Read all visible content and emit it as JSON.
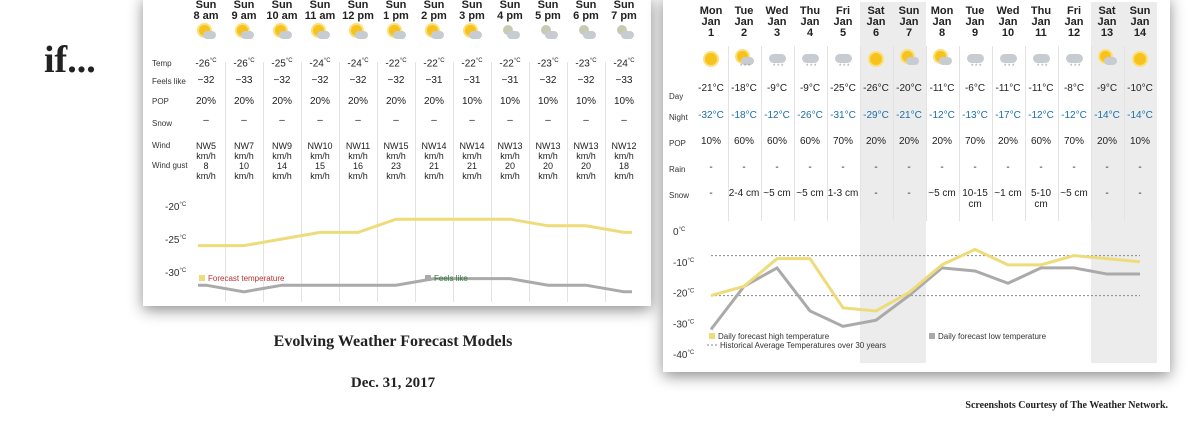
{
  "page": {
    "heading": "if...",
    "caption_title": "Evolving Weather Forecast Models",
    "caption_date": "Dec. 31, 2017",
    "credit": "Screenshots Courtesy of The Weather Network."
  },
  "hourly": {
    "row_labels": [
      "Temp",
      "Feels like",
      "POP",
      "Snow",
      "Wind",
      "Wind gust"
    ],
    "columns": [
      {
        "day": "Sun",
        "time": "8 am",
        "icon": "sun-cloud-icon",
        "temp": "-26",
        "feels": "−32",
        "pop": "20%",
        "snow": "–",
        "wind": "NW5",
        "wind_unit": "km/h",
        "gust": "8",
        "gust_unit": "km/h"
      },
      {
        "day": "Sun",
        "time": "9 am",
        "icon": "sun-cloud-icon",
        "temp": "-26",
        "feels": "−33",
        "pop": "20%",
        "snow": "–",
        "wind": "NW7",
        "wind_unit": "km/h",
        "gust": "10",
        "gust_unit": "km/h"
      },
      {
        "day": "Sun",
        "time": "10 am",
        "icon": "sun-cloud-icon",
        "temp": "-25",
        "feels": "−32",
        "pop": "20%",
        "snow": "–",
        "wind": "NW9",
        "wind_unit": "km/h",
        "gust": "14",
        "gust_unit": "km/h"
      },
      {
        "day": "Sun",
        "time": "11 am",
        "icon": "sun-cloud-icon",
        "temp": "-24",
        "feels": "−32",
        "pop": "20%",
        "snow": "–",
        "wind": "NW10",
        "wind_unit": "km/h",
        "gust": "15",
        "gust_unit": "km/h"
      },
      {
        "day": "Sun",
        "time": "12 pm",
        "icon": "sun-cloud-icon",
        "temp": "-24",
        "feels": "−32",
        "pop": "20%",
        "snow": "–",
        "wind": "NW11",
        "wind_unit": "km/h",
        "gust": "16",
        "gust_unit": "km/h"
      },
      {
        "day": "Sun",
        "time": "1 pm",
        "icon": "sun-cloud-icon",
        "temp": "-22",
        "feels": "−32",
        "pop": "20%",
        "snow": "–",
        "wind": "NW15",
        "wind_unit": "km/h",
        "gust": "23",
        "gust_unit": "km/h"
      },
      {
        "day": "Sun",
        "time": "2 pm",
        "icon": "sun-cloud-icon",
        "temp": "-22",
        "feels": "−31",
        "pop": "20%",
        "snow": "–",
        "wind": "NW14",
        "wind_unit": "km/h",
        "gust": "21",
        "gust_unit": "km/h"
      },
      {
        "day": "Sun",
        "time": "3 pm",
        "icon": "sun-cloud-icon",
        "temp": "-22",
        "feels": "−31",
        "pop": "10%",
        "snow": "–",
        "wind": "NW14",
        "wind_unit": "km/h",
        "gust": "21",
        "gust_unit": "km/h"
      },
      {
        "day": "Sun",
        "time": "4 pm",
        "icon": "moon-cloud-icon",
        "temp": "-22",
        "feels": "−31",
        "pop": "10%",
        "snow": "–",
        "wind": "NW13",
        "wind_unit": "km/h",
        "gust": "20",
        "gust_unit": "km/h"
      },
      {
        "day": "Sun",
        "time": "5 pm",
        "icon": "moon-cloud-icon",
        "temp": "-23",
        "feels": "−32",
        "pop": "10%",
        "snow": "–",
        "wind": "NW13",
        "wind_unit": "km/h",
        "gust": "20",
        "gust_unit": "km/h"
      },
      {
        "day": "Sun",
        "time": "6 pm",
        "icon": "moon-cloud-icon",
        "temp": "-23",
        "feels": "−32",
        "pop": "10%",
        "snow": "–",
        "wind": "NW13",
        "wind_unit": "km/h",
        "gust": "20",
        "gust_unit": "km/h"
      },
      {
        "day": "Sun",
        "time": "7 pm",
        "icon": "moon-cloud-icon",
        "temp": "-24",
        "feels": "−33",
        "pop": "10%",
        "snow": "–",
        "wind": "NW12",
        "wind_unit": "km/h",
        "gust": "18",
        "gust_unit": "km/h"
      }
    ],
    "temp_unit": "°C",
    "chart": {
      "y_ticks": [
        "-20",
        "-25",
        "-30"
      ],
      "y_unit": "°C",
      "ylim": [
        -32,
        -18
      ],
      "forecast_temperature": [
        -26,
        -26,
        -25,
        -24,
        -24,
        -22,
        -22,
        -22,
        -22,
        -23,
        -23,
        -24
      ],
      "feels_like": [
        -32,
        -33,
        -32,
        -32,
        -32,
        -32,
        -31,
        -31,
        -31,
        -32,
        -32,
        -33
      ],
      "legend_forecast": "Forecast temperature",
      "legend_feels": "Feels like",
      "color_forecast": "#eedc7a",
      "color_feels": "#aaaaaa"
    }
  },
  "daily": {
    "row_labels": [
      "Day",
      "Night",
      "POP",
      "Rain",
      "Snow"
    ],
    "columns": [
      {
        "dow": "Mon",
        "mon": "Jan",
        "date": "1",
        "icon": "sun-icon",
        "day": "-21°C",
        "night": "-32°C",
        "pop": "10%",
        "rain": "-",
        "snow": "-",
        "weekend": false
      },
      {
        "dow": "Tue",
        "mon": "Jan",
        "date": "2",
        "icon": "sun-cloud-snow-icon",
        "day": "-18°C",
        "night": "-18°C",
        "pop": "60%",
        "rain": "-",
        "snow": "2-4 cm",
        "weekend": false
      },
      {
        "dow": "Wed",
        "mon": "Jan",
        "date": "3",
        "icon": "cloud-snow-icon",
        "day": "-9°C",
        "night": "-12°C",
        "pop": "60%",
        "rain": "-",
        "snow": "~5 cm",
        "weekend": false
      },
      {
        "dow": "Thu",
        "mon": "Jan",
        "date": "4",
        "icon": "cloud-snow-icon",
        "day": "-9°C",
        "night": "-26°C",
        "pop": "60%",
        "rain": "-",
        "snow": "~5 cm",
        "weekend": false
      },
      {
        "dow": "Fri",
        "mon": "Jan",
        "date": "5",
        "icon": "cloud-snow-icon",
        "day": "-25°C",
        "night": "-31°C",
        "pop": "70%",
        "rain": "-",
        "snow": "1-3 cm",
        "weekend": false
      },
      {
        "dow": "Sat",
        "mon": "Jan",
        "date": "6",
        "icon": "sun-icon",
        "day": "-26°C",
        "night": "-29°C",
        "pop": "20%",
        "rain": "-",
        "snow": "-",
        "weekend": true
      },
      {
        "dow": "Sun",
        "mon": "Jan",
        "date": "7",
        "icon": "sun-cloud-icon",
        "day": "-20°C",
        "night": "-21°C",
        "pop": "20%",
        "rain": "-",
        "snow": "-",
        "weekend": true
      },
      {
        "dow": "Mon",
        "mon": "Jan",
        "date": "8",
        "icon": "sun-cloud-icon",
        "day": "-11°C",
        "night": "-12°C",
        "pop": "20%",
        "rain": "-",
        "snow": "~5 cm",
        "weekend": false
      },
      {
        "dow": "Tue",
        "mon": "Jan",
        "date": "9",
        "icon": "cloud-snow-icon",
        "day": "-6°C",
        "night": "-13°C",
        "pop": "70%",
        "rain": "-",
        "snow": "10-15 cm",
        "weekend": false
      },
      {
        "dow": "Wed",
        "mon": "Jan",
        "date": "10",
        "icon": "cloud-snow-icon",
        "day": "-11°C",
        "night": "-17°C",
        "pop": "20%",
        "rain": "-",
        "snow": "~1 cm",
        "weekend": false
      },
      {
        "dow": "Thu",
        "mon": "Jan",
        "date": "11",
        "icon": "cloud-snow-icon",
        "day": "-11°C",
        "night": "-12°C",
        "pop": "60%",
        "rain": "-",
        "snow": "5-10 cm",
        "weekend": false
      },
      {
        "dow": "Fri",
        "mon": "Jan",
        "date": "12",
        "icon": "cloud-snow-icon",
        "day": "-8°C",
        "night": "-12°C",
        "pop": "70%",
        "rain": "-",
        "snow": "~5 cm",
        "weekend": false
      },
      {
        "dow": "Sat",
        "mon": "Jan",
        "date": "13",
        "icon": "sun-cloud-icon",
        "day": "-9°C",
        "night": "-14°C",
        "pop": "20%",
        "rain": "-",
        "snow": "-",
        "weekend": true
      },
      {
        "dow": "Sun",
        "mon": "Jan",
        "date": "14",
        "icon": "sun-icon",
        "day": "-10°C",
        "night": "-14°C",
        "pop": "10%",
        "rain": "-",
        "snow": "-",
        "weekend": true
      }
    ],
    "chart": {
      "y_ticks": [
        "0",
        "-10",
        "-20",
        "-30",
        "-40"
      ],
      "y_unit": "°C",
      "ylim": [
        -40,
        0
      ],
      "daily_high": [
        -21,
        -18,
        -9,
        -9,
        -25,
        -26,
        -20,
        -11,
        -6,
        -11,
        -11,
        -8,
        -9,
        -10
      ],
      "daily_low": [
        -32,
        -18,
        -12,
        -26,
        -31,
        -29,
        -21,
        -12,
        -13,
        -17,
        -12,
        -12,
        -14,
        -14
      ],
      "historical_high": -8,
      "historical_low": -21,
      "legend_high": "Daily forecast high temperature",
      "legend_low": "Daily forecast low temperature",
      "legend_hist": "Historical Average Temperatures over 30 years",
      "color_high": "#eedc7a",
      "color_low": "#aaaaaa",
      "color_night": "#1a6fa8"
    }
  }
}
